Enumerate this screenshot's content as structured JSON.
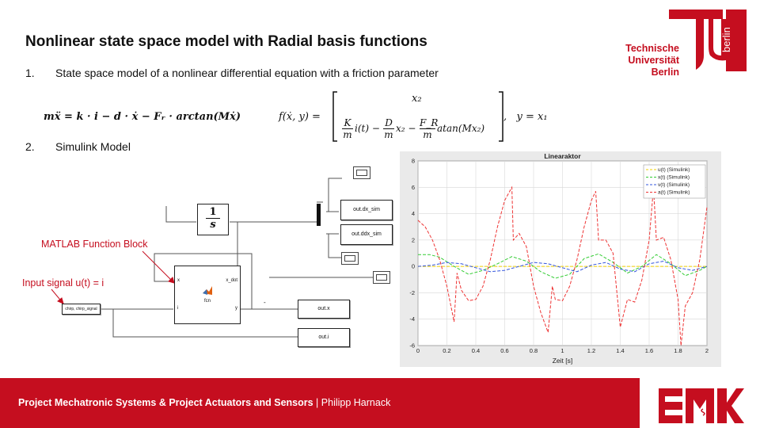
{
  "slide": {
    "title": "Nonlinear state space model with Radial basis functions",
    "items": [
      {
        "num": "1.",
        "text": "State space model of a nonlinear differential equation with a friction parameter"
      },
      {
        "num": "2.",
        "text": "Simulink Model"
      }
    ]
  },
  "logo": {
    "line1": "Technische",
    "line2": "Universität",
    "line3": "Berlin",
    "vertical": "berlin"
  },
  "equations": {
    "ode": "mẍ = k · i − d · ẋ − Fᵣ · arctan(Mẋ)",
    "f_lhs": "f(ẋ, y) =",
    "row1": "x₂",
    "row2_k": "K",
    "row2_m": "m",
    "row2_i": "i(t) −",
    "row2_d": "D",
    "row2_x2": "x₂ −",
    "row2_fr": "F_R",
    "row2_atan": "atan(Mx₂)",
    "output": ",   y = x₁"
  },
  "simulink": {
    "integrator_num": "1",
    "integrator_den": "s",
    "chirp_label": "chirp, chirp_signal",
    "fcn_label": "fcn",
    "fcn_port_xdot": "x_dot",
    "fcn_port_y": "y",
    "fcn_port_x": "x",
    "fcn_port_i": "i",
    "out_dx": "out.dx_sim",
    "out_ddx": "out.ddx_sim",
    "out_x": "out.x",
    "out_i": "out.i",
    "wire_label": "-"
  },
  "annotations": {
    "matlab_fcn": "MATLAB Function Block",
    "input_signal": "Input signal u(t) = i"
  },
  "footer": {
    "bold": "Project Mechatronic Systems & Project Actuators and Sensors",
    "sep": " | ",
    "author": "Philipp Harnack"
  },
  "footer_logo": "EMK",
  "colors": {
    "accent": "#c50e1f"
  },
  "chart_data": {
    "type": "line",
    "title": "Linearaktor",
    "xlabel": "Zeit [s]",
    "ylabel": "",
    "xlim": [
      0,
      2
    ],
    "ylim": [
      -6,
      8
    ],
    "xticks": [
      0,
      0.2,
      0.4,
      0.6,
      0.8,
      1,
      1.2,
      1.4,
      1.6,
      1.8,
      2
    ],
    "yticks": [
      -6,
      -4,
      -2,
      0,
      2,
      4,
      6,
      8
    ],
    "grid": true,
    "legend": "top-right",
    "series": [
      {
        "name": "u(t) (Simulink)",
        "color": "#f0d000",
        "x": [
          0,
          2
        ],
        "y": [
          0,
          0
        ]
      },
      {
        "name": "x(t) (Simulink)",
        "color": "#33cc33",
        "x": [
          0,
          0.08,
          0.15,
          0.25,
          0.35,
          0.45,
          0.55,
          0.65,
          0.75,
          0.85,
          0.95,
          1.05,
          1.15,
          1.25,
          1.35,
          1.45,
          1.55,
          1.65,
          1.75,
          1.85,
          1.95,
          2.0
        ],
        "y": [
          0.9,
          0.9,
          0.7,
          0.0,
          -0.6,
          -0.3,
          0.2,
          0.75,
          0.4,
          -0.4,
          -0.9,
          -0.6,
          0.6,
          0.95,
          0.3,
          -0.5,
          0.0,
          0.9,
          0.2,
          -0.7,
          -0.3,
          0.0
        ]
      },
      {
        "name": "v(t) (Simulink)",
        "color": "#3355dd",
        "x": [
          0,
          0.1,
          0.2,
          0.3,
          0.4,
          0.5,
          0.6,
          0.7,
          0.8,
          0.9,
          1.0,
          1.1,
          1.2,
          1.3,
          1.4,
          1.5,
          1.6,
          1.7,
          1.8,
          1.9,
          2.0
        ],
        "y": [
          0.0,
          0.1,
          0.3,
          0.2,
          -0.1,
          -0.4,
          -0.3,
          0.0,
          0.3,
          0.2,
          -0.1,
          -0.4,
          0.1,
          0.3,
          -0.2,
          -0.4,
          0.2,
          0.4,
          -0.1,
          -0.3,
          0.0
        ]
      },
      {
        "name": "a(t) (Simulink)",
        "color": "#ee3333",
        "x": [
          0,
          0.05,
          0.1,
          0.15,
          0.2,
          0.25,
          0.27,
          0.3,
          0.35,
          0.4,
          0.45,
          0.5,
          0.55,
          0.6,
          0.65,
          0.66,
          0.7,
          0.75,
          0.8,
          0.85,
          0.9,
          0.93,
          0.95,
          1.0,
          1.05,
          1.1,
          1.15,
          1.2,
          1.23,
          1.25,
          1.3,
          1.35,
          1.4,
          1.45,
          1.5,
          1.55,
          1.6,
          1.63,
          1.65,
          1.7,
          1.75,
          1.8,
          1.82,
          1.85,
          1.9,
          1.95,
          2.0
        ],
        "y": [
          3.5,
          3.0,
          2.0,
          0.5,
          -1.5,
          -4.2,
          -0.5,
          -1.8,
          -2.6,
          -2.5,
          -1.5,
          0.5,
          3.0,
          5.0,
          6.0,
          2.0,
          2.5,
          1.5,
          -1.5,
          -3.5,
          -5.0,
          -1.5,
          -2.5,
          -2.6,
          -1.5,
          0.5,
          3.0,
          5.0,
          5.7,
          2.0,
          2.0,
          1.0,
          -4.6,
          -2.5,
          -2.7,
          -1.0,
          2.0,
          6.0,
          2.0,
          2.2,
          0.5,
          -2.5,
          -6.0,
          -3.0,
          -2.0,
          0.5,
          4.5
        ]
      }
    ]
  }
}
